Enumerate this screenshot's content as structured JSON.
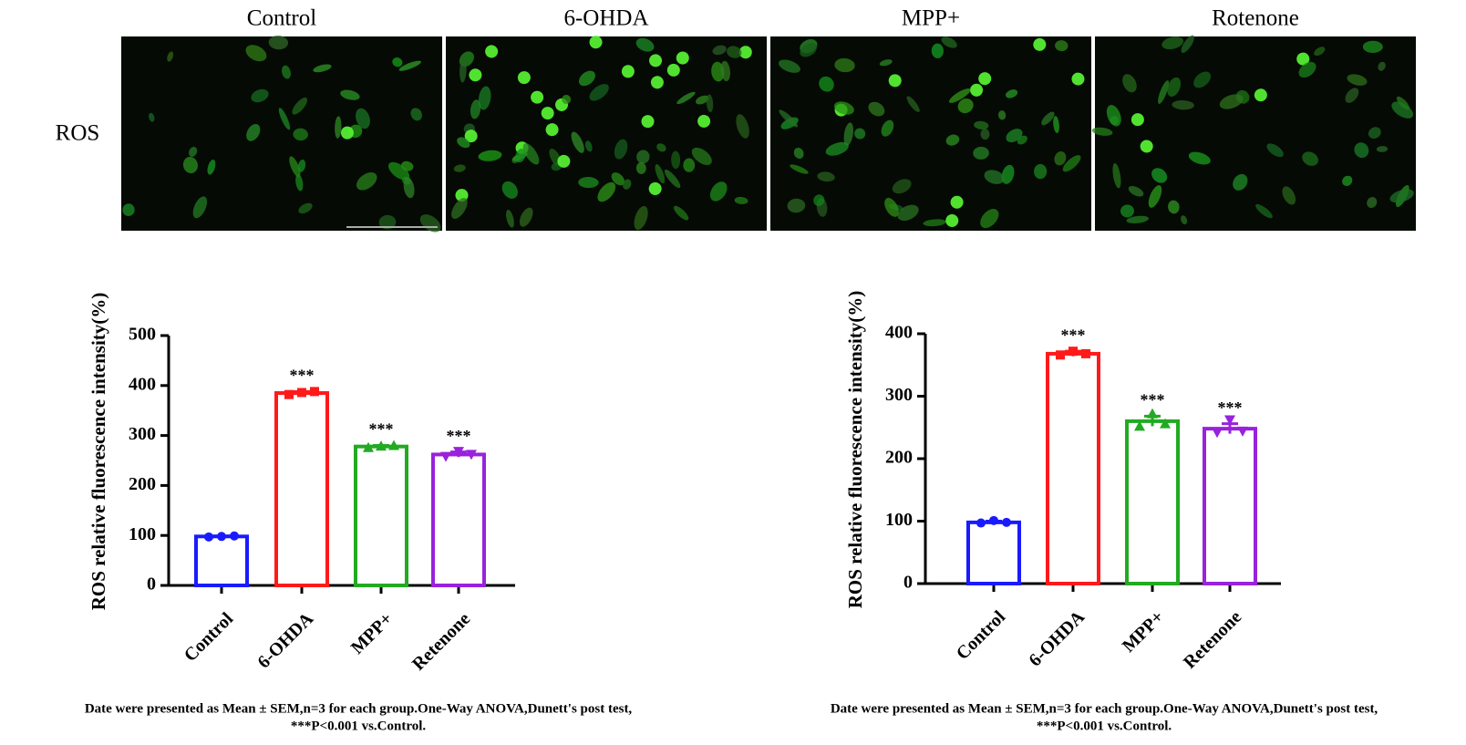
{
  "images": {
    "row_label": "ROS",
    "columns": [
      "Control",
      "6-OHDA",
      "MPP+",
      "Rotenone"
    ]
  },
  "chart_data": [
    {
      "type": "bar",
      "y_label": "ROS relative fluorescence intensity(%)",
      "categories": [
        "Control",
        "6-OHDA",
        "MPP+",
        "Retenone"
      ],
      "values": [
        98,
        385,
        278,
        262
      ],
      "errors": [
        1,
        3,
        2,
        5
      ],
      "points": [
        [
          97,
          98,
          99
        ],
        [
          382,
          386,
          388
        ],
        [
          276,
          279,
          280
        ],
        [
          258,
          268,
          262
        ]
      ],
      "significance": [
        null,
        "***",
        "***",
        "***"
      ],
      "colors": [
        "#1a1aff",
        "#ff1a1a",
        "#22aa22",
        "#9922dd"
      ],
      "ylim": [
        0,
        500
      ],
      "yticks": [
        0,
        100,
        200,
        300,
        400,
        500
      ],
      "note": [
        "Date were presented as Mean ± SEM,n=3 for each group.One-Way ANOVA,Dunett's post test,",
        "***P<0.001 vs.Control."
      ]
    },
    {
      "type": "bar",
      "y_label": "ROS relative fluorescence intensity(%)",
      "categories": [
        "Control",
        "6-OHDA",
        "MPP+",
        "Retenone"
      ],
      "values": [
        98,
        368,
        260,
        248
      ],
      "errors": [
        2,
        4,
        8,
        8
      ],
      "points": [
        [
          97,
          101,
          98
        ],
        [
          366,
          372,
          368
        ],
        [
          252,
          272,
          256
        ],
        [
          242,
          262,
          244
        ]
      ],
      "significance": [
        null,
        "***",
        "***",
        "***"
      ],
      "colors": [
        "#1a1aff",
        "#ff1a1a",
        "#22aa22",
        "#9922dd"
      ],
      "ylim": [
        0,
        400
      ],
      "yticks": [
        0,
        100,
        200,
        300,
        400
      ],
      "note": [
        "Date were presented as Mean ± SEM,n=3 for each group.One-Way ANOVA,Dunett's post test,",
        "***P<0.001 vs.Control."
      ]
    }
  ]
}
